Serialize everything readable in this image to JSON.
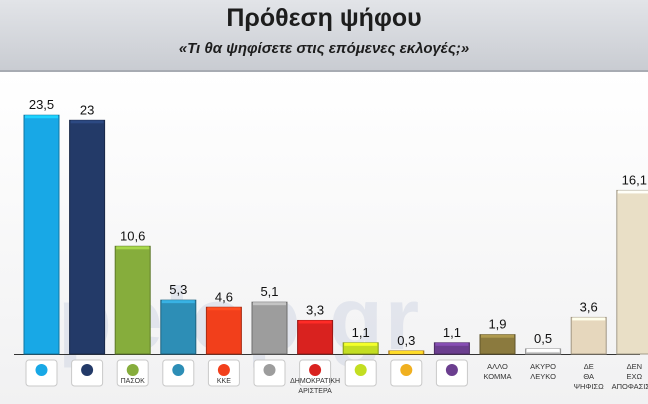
{
  "header": {
    "title": "Πρόθεση ψήφου",
    "subtitle": "«Τι θα ψηφίσετε στις επόμενες εκλογές;»"
  },
  "watermark": "pelop.gr",
  "colors": {
    "background": "#f2f2f3",
    "header": "#d3d6db",
    "axis_line": "#333333"
  },
  "chart_data": {
    "type": "bar",
    "title": "Πρόθεση ψήφου",
    "subtitle": "«Τι θα ψηφίσετε στις επόμενες εκλογές;»",
    "ylim": [
      0,
      25
    ],
    "grid": false,
    "categories": [
      {
        "label": "",
        "logo": "nd-logo",
        "value": 23.5,
        "value_text": "23,5",
        "color": "#18a8e6"
      },
      {
        "label": "",
        "logo": "syriza-logo",
        "value": 23,
        "value_text": "23",
        "color": "#233a68"
      },
      {
        "label": "ΠΑΣΟΚ",
        "logo": "pasok-logo",
        "value": 10.6,
        "value_text": "10,6",
        "color": "#86ad3c"
      },
      {
        "label": "",
        "logo": "elia-logo",
        "value": 5.3,
        "value_text": "5,3",
        "color": "#2d8eb6"
      },
      {
        "label": "ΚΚΕ",
        "logo": "kke-logo",
        "value": 4.6,
        "value_text": "4,6",
        "color": "#f23f1b"
      },
      {
        "label": "",
        "logo": "xa-logo",
        "value": 5.1,
        "value_text": "5,1",
        "color": "#9d9d9d"
      },
      {
        "label": "ΔΗΜΟΚΡΑΤΙΚΗ ΑΡΙΣΤΕΡΑ",
        "logo": "dimar-logo",
        "value": 3.3,
        "value_text": "3,3",
        "color": "#d9221f"
      },
      {
        "label": "",
        "logo": "greens-logo",
        "value": 1.1,
        "value_text": "1,1",
        "color": "#c3de22"
      },
      {
        "label": "",
        "logo": "laos-logo",
        "value": 0.3,
        "value_text": "0,3",
        "color": "#f0b020"
      },
      {
        "label": "",
        "logo": "drasi-logo",
        "value": 1.1,
        "value_text": "1,1",
        "color": "#6b3e8f"
      },
      {
        "label": "ΑΛΛΟ ΚΟΜΜΑ",
        "logo": "",
        "value": 1.9,
        "value_text": "1,9",
        "color": "#8b7a3e"
      },
      {
        "label": "ΑΚΥΡΟ ΛΕΥΚΟ",
        "logo": "",
        "value": 0.5,
        "value_text": "0,5",
        "color": "#cfcfcf"
      },
      {
        "label": "ΔΕ ΘΑ ΨΗΦΙΣΩ",
        "logo": "",
        "value": 3.6,
        "value_text": "3,6",
        "color": "#e6d7bd"
      },
      {
        "label": "ΔΕΝ ΕΧΩ ΑΠΟΦΑΣΙΣΕΙ",
        "logo": "",
        "value": 16.1,
        "value_text": "16,1",
        "color": "#e9dfc6"
      }
    ]
  }
}
